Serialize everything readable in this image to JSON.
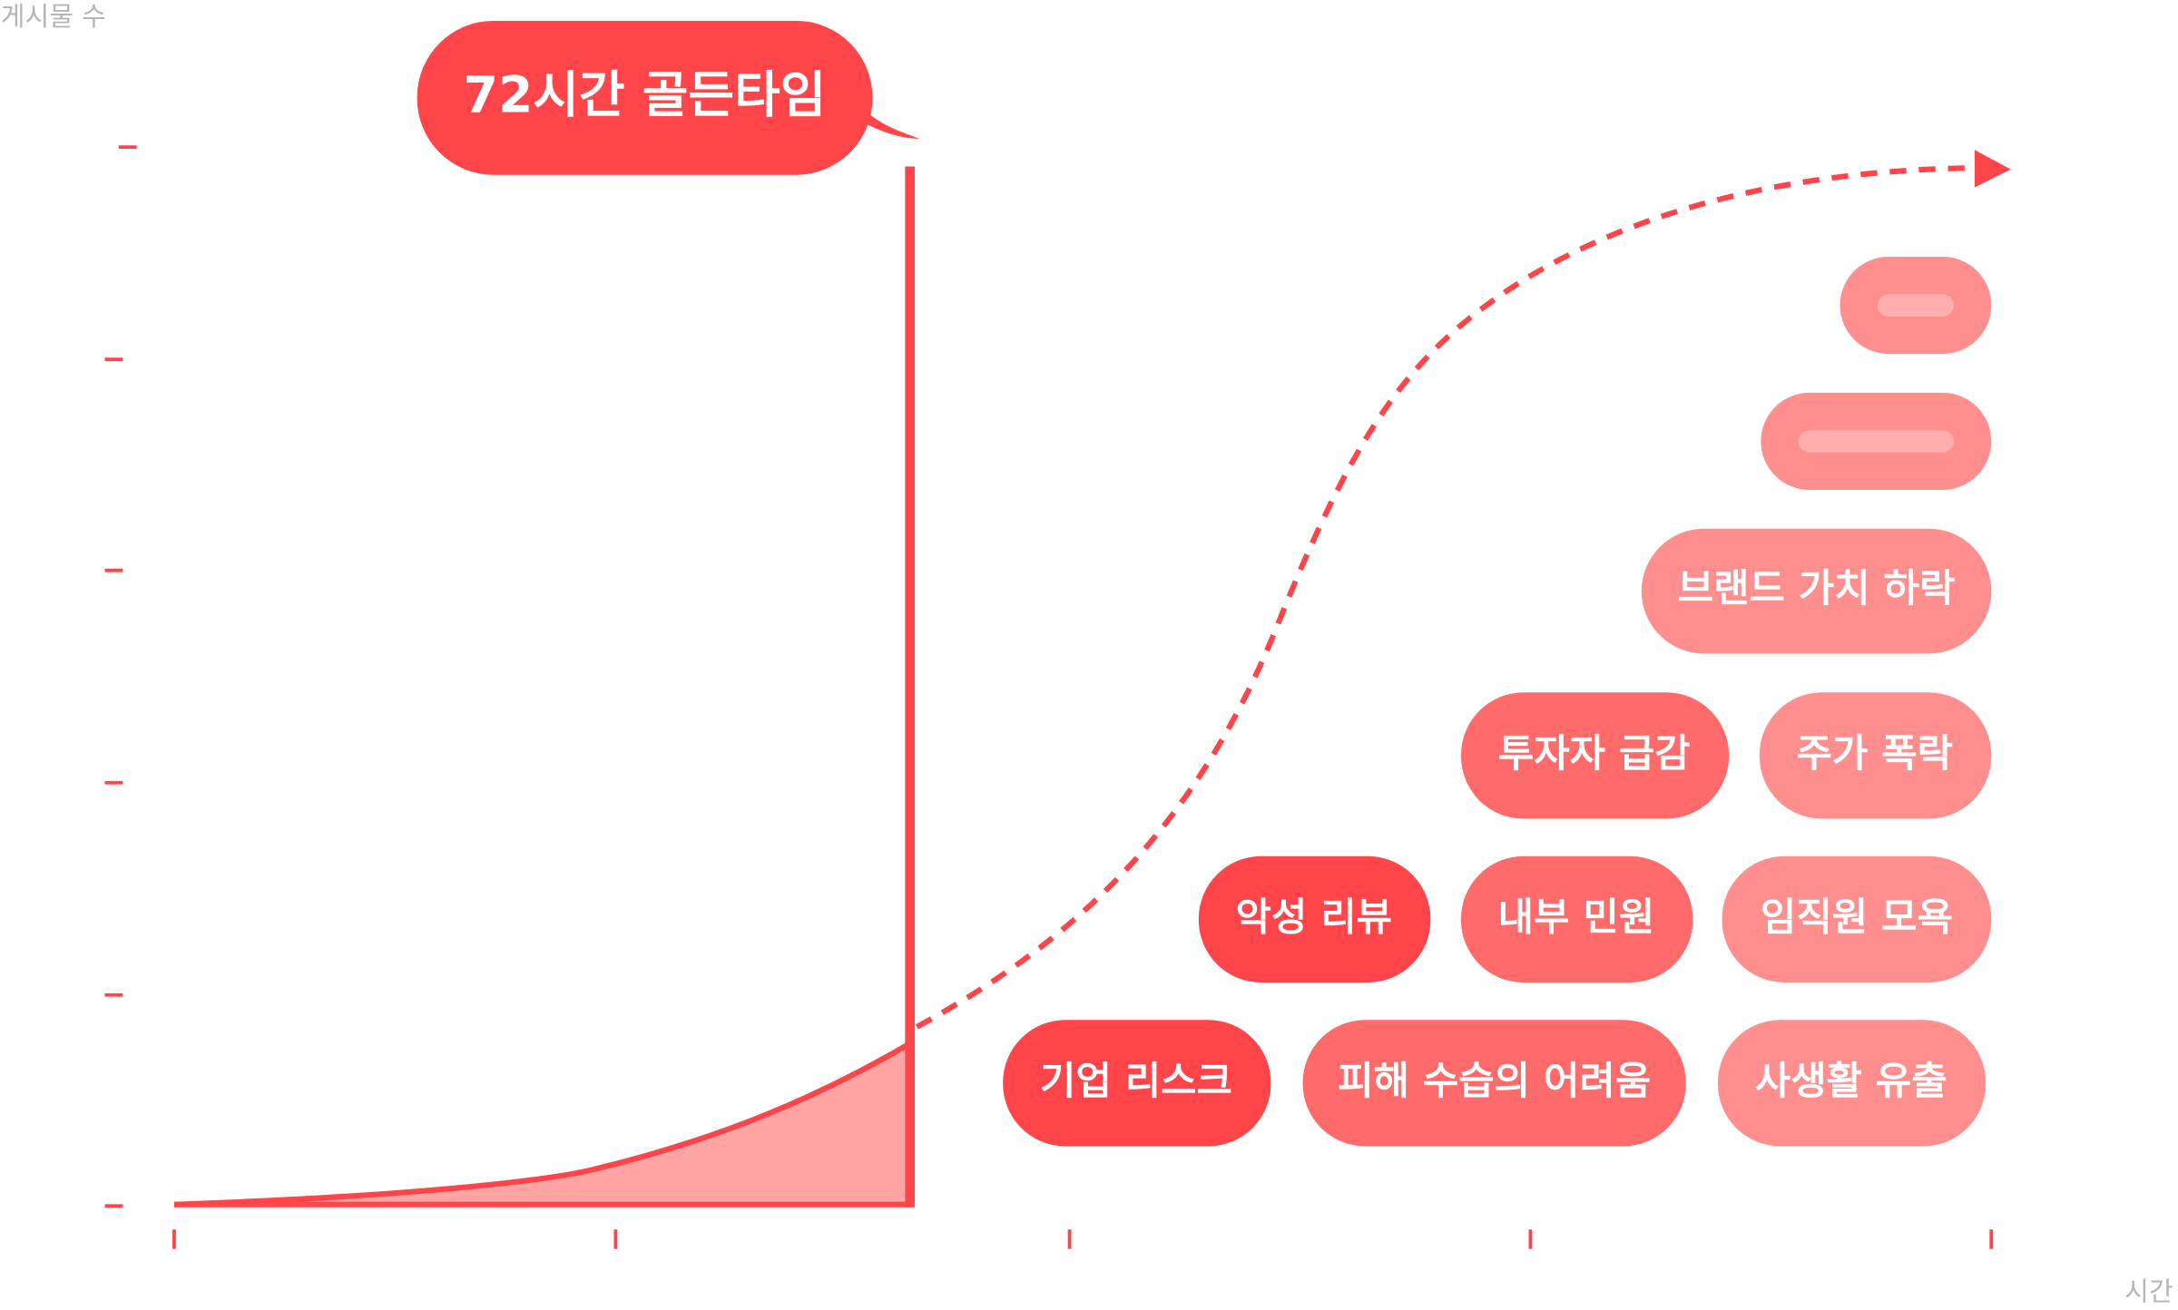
{
  "y_axis_label": "게시물 수",
  "x_axis_label": "시간",
  "callout": "72시간 골든타임",
  "risks": [
    "기업 리스크",
    "피해 수습의 어려움",
    "사생활 유출",
    "악성 리뷰",
    "내부 민원",
    "임직원 모욕",
    "투자자 급감",
    "주가 폭락",
    "브랜드 가치 하락"
  ]
}
